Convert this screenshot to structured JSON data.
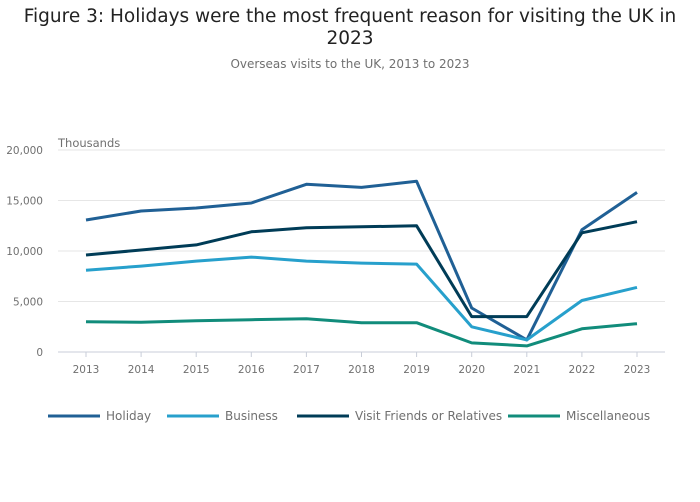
{
  "chart_data": {
    "type": "line",
    "title": "Figure 3: Holidays were the most frequent reason for visiting the UK in 2023",
    "subtitle": "Overseas visits to the UK, 2013 to 2023",
    "ylabel": "Thousands",
    "xlabel": "",
    "ylim": [
      0,
      20000
    ],
    "yticks": [
      0,
      5000,
      10000,
      15000,
      20000
    ],
    "ytick_labels": [
      "0",
      "5,000",
      "10,000",
      "15,000",
      "20,000"
    ],
    "grid": true,
    "legend_position": "bottom",
    "x": [
      "2013",
      "2014",
      "2015",
      "2016",
      "2017",
      "2018",
      "2019",
      "2020",
      "2021",
      "2022",
      "2023"
    ],
    "series": [
      {
        "name": "Holiday",
        "color": "#206095",
        "values": [
          13070,
          13960,
          14260,
          14750,
          16600,
          16300,
          16900,
          4360,
          1200,
          12100,
          15800
        ]
      },
      {
        "name": "Business",
        "color": "#27a0cc",
        "values": [
          8100,
          8500,
          9000,
          9400,
          9000,
          8800,
          8700,
          2500,
          1200,
          5100,
          6400
        ]
      },
      {
        "name": "Visit Friends or Relatives",
        "color": "#003c57",
        "values": [
          9600,
          10100,
          10600,
          11900,
          12300,
          12400,
          12500,
          3500,
          3500,
          11800,
          12900
        ]
      },
      {
        "name": "Miscellaneous",
        "color": "#118c7b",
        "values": [
          3000,
          2950,
          3100,
          3200,
          3300,
          2900,
          2900,
          900,
          600,
          2300,
          2800
        ]
      }
    ]
  }
}
